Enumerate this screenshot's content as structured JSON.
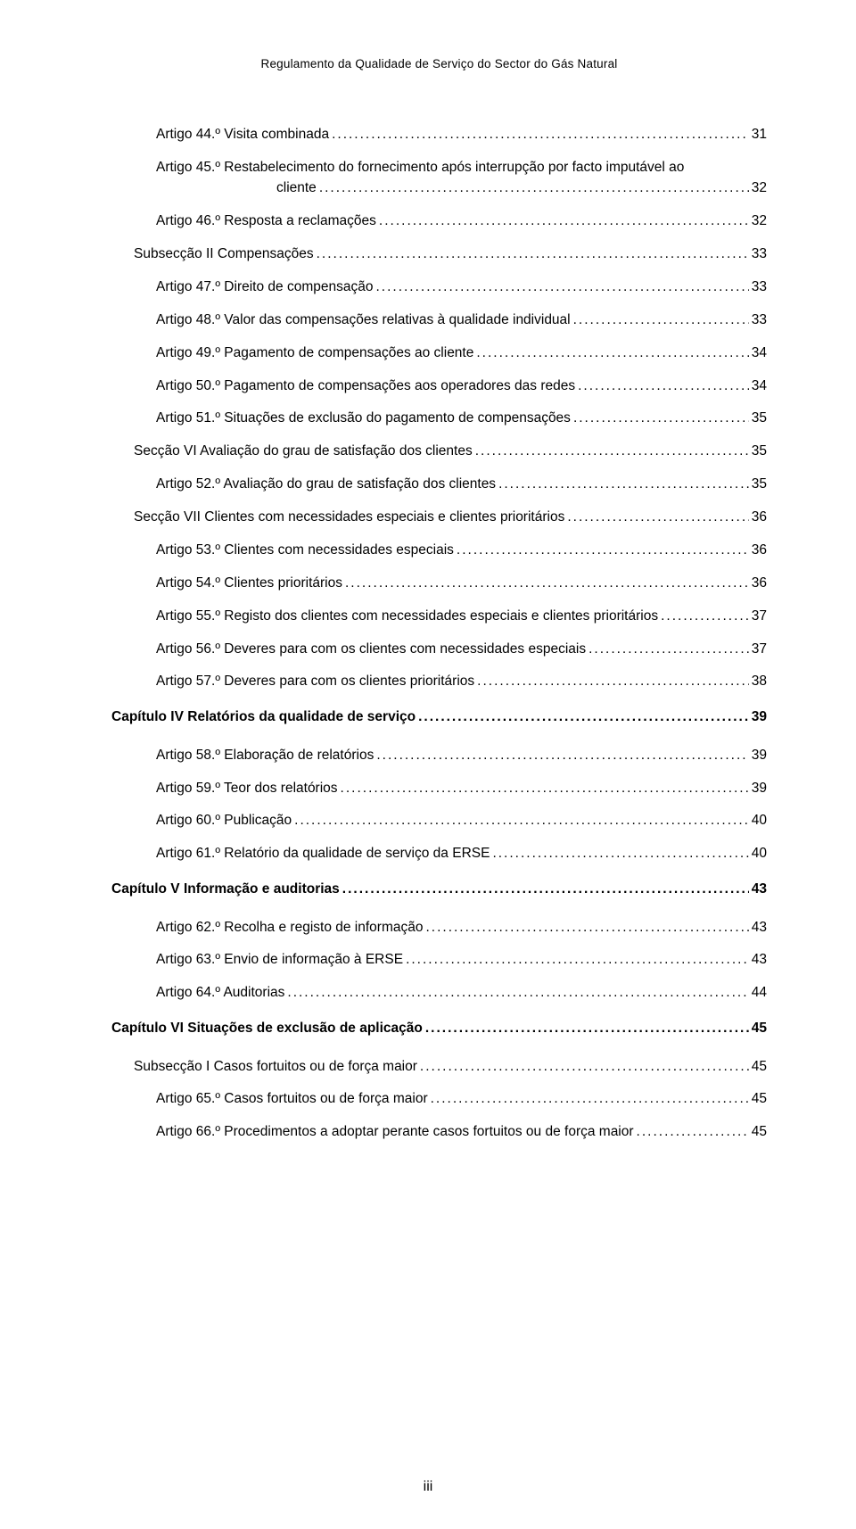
{
  "header": "Regulamento da Qualidade de Serviço do Sector do Gás Natural",
  "footer": "iii",
  "toc": [
    {
      "level": 3,
      "bold": false,
      "label": "Artigo 44.º Visita combinada",
      "page": "31"
    },
    {
      "level": 3,
      "bold": false,
      "label": "Artigo 45.º Restabelecimento do fornecimento após interrupção por facto imputável ao cliente",
      "page": "32",
      "wrapLast": "cliente"
    },
    {
      "level": 3,
      "bold": false,
      "label": "Artigo 46.º Resposta a reclamações",
      "page": "32"
    },
    {
      "level": 2,
      "bold": false,
      "label": "Subsecção II Compensações",
      "page": "33"
    },
    {
      "level": 3,
      "bold": false,
      "label": "Artigo 47.º Direito de compensação",
      "page": "33"
    },
    {
      "level": 3,
      "bold": false,
      "label": "Artigo 48.º Valor das compensações relativas à qualidade individual",
      "page": "33"
    },
    {
      "level": 3,
      "bold": false,
      "label": "Artigo 49.º Pagamento de compensações ao cliente",
      "page": "34"
    },
    {
      "level": 3,
      "bold": false,
      "label": "Artigo 50.º Pagamento de compensações aos operadores das redes",
      "page": "34"
    },
    {
      "level": 3,
      "bold": false,
      "label": "Artigo 51.º Situações de exclusão do pagamento de compensações",
      "page": "35"
    },
    {
      "level": 2,
      "bold": false,
      "label": "Secção VI Avaliação do grau de satisfação dos clientes",
      "page": "35"
    },
    {
      "level": 3,
      "bold": false,
      "label": "Artigo 52.º Avaliação do grau de satisfação dos clientes",
      "page": "35"
    },
    {
      "level": 2,
      "bold": false,
      "label": "Secção VII Clientes com necessidades especiais e clientes prioritários",
      "page": "36"
    },
    {
      "level": 3,
      "bold": false,
      "label": "Artigo 53.º Clientes com necessidades especiais",
      "page": "36"
    },
    {
      "level": 3,
      "bold": false,
      "label": "Artigo 54.º Clientes prioritários",
      "page": "36"
    },
    {
      "level": 3,
      "bold": false,
      "label": "Artigo 55.º Registo dos clientes com necessidades especiais e clientes prioritários",
      "page": "37"
    },
    {
      "level": 3,
      "bold": false,
      "label": "Artigo 56.º Deveres para com os clientes com necessidades especiais",
      "page": "37"
    },
    {
      "level": 3,
      "bold": false,
      "label": "Artigo 57.º Deveres para com os clientes prioritários",
      "page": "38"
    },
    {
      "level": 1,
      "bold": true,
      "label": "Capítulo IV Relatórios da qualidade de serviço",
      "page": "39"
    },
    {
      "level": 3,
      "bold": false,
      "label": "Artigo 58.º Elaboração de relatórios",
      "page": "39"
    },
    {
      "level": 3,
      "bold": false,
      "label": "Artigo 59.º Teor dos relatórios",
      "page": "39"
    },
    {
      "level": 3,
      "bold": false,
      "label": "Artigo 60.º Publicação",
      "page": "40"
    },
    {
      "level": 3,
      "bold": false,
      "label": "Artigo 61.º Relatório da qualidade de serviço da ERSE",
      "page": "40"
    },
    {
      "level": 1,
      "bold": true,
      "label": "Capítulo V Informação e auditorias",
      "page": "43"
    },
    {
      "level": 3,
      "bold": false,
      "label": "Artigo 62.º Recolha e registo de informação",
      "page": "43"
    },
    {
      "level": 3,
      "bold": false,
      "label": "Artigo 63.º Envio de informação à ERSE",
      "page": "43"
    },
    {
      "level": 3,
      "bold": false,
      "label": "Artigo 64.º Auditorias",
      "page": "44"
    },
    {
      "level": 1,
      "bold": true,
      "label": "Capítulo VI Situações de exclusão de aplicação",
      "page": "45"
    },
    {
      "level": 2,
      "bold": false,
      "label": "Subsecção I Casos fortuitos ou de força maior",
      "page": "45"
    },
    {
      "level": 3,
      "bold": false,
      "label": "Artigo 65.º Casos fortuitos ou de força maior",
      "page": "45"
    },
    {
      "level": 3,
      "bold": false,
      "label": "Artigo 66.º Procedimentos a adoptar perante casos fortuitos ou de força maior",
      "page": "45"
    }
  ],
  "style": {
    "dotChar": ".",
    "dotRepeat": 200,
    "spacing": {
      "l1_mb": 17.5,
      "l1_mt_extra": 20
    }
  }
}
